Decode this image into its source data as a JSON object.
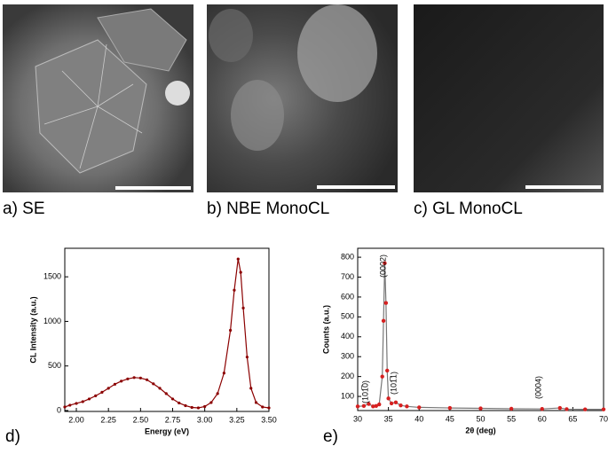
{
  "panels": [
    "a) SE",
    "b) NBE MonoCL",
    "c) GL MonoCL",
    "d)",
    "e)"
  ],
  "chart_data": [
    {
      "type": "line",
      "xlabel": "Energy  (eV)",
      "ylabel": "CL Intensity (a.u.)",
      "x": [
        1.91,
        1.95,
        2.0,
        2.05,
        2.1,
        2.15,
        2.2,
        2.25,
        2.3,
        2.35,
        2.4,
        2.45,
        2.5,
        2.55,
        2.6,
        2.65,
        2.7,
        2.75,
        2.8,
        2.85,
        2.9,
        2.95,
        3.0,
        3.05,
        3.1,
        3.15,
        3.2,
        3.23,
        3.26,
        3.28,
        3.3,
        3.33,
        3.36,
        3.4,
        3.45,
        3.5
      ],
      "series": [
        {
          "color": "#8b0000",
          "values": [
            40,
            60,
            80,
            100,
            130,
            165,
            205,
            250,
            295,
            330,
            355,
            370,
            365,
            345,
            300,
            250,
            190,
            130,
            85,
            55,
            35,
            30,
            45,
            90,
            190,
            420,
            900,
            1350,
            1700,
            1550,
            1150,
            600,
            250,
            90,
            40,
            30
          ]
        }
      ],
      "xlim": [
        1.91,
        3.5
      ],
      "ylim": [
        -10,
        1820
      ],
      "xticks": [
        {
          "value": 2,
          "label": "2.00"
        },
        {
          "value": 2.25,
          "label": "2.25"
        },
        {
          "value": 2.5,
          "label": "2.50"
        },
        {
          "value": 2.75,
          "label": "2.75"
        },
        {
          "value": 3,
          "label": "3.00"
        },
        {
          "value": 3.25,
          "label": "3.25"
        },
        {
          "value": 3.5,
          "label": "3.50"
        }
      ],
      "yticks": [
        0,
        500,
        1000,
        1500
      ]
    },
    {
      "type": "scatter",
      "xlabel": "2θ (deg)",
      "ylabel": "Counts (a.u.)",
      "x": [
        30,
        31,
        31.8,
        32.5,
        33,
        33.5,
        34,
        34.2,
        34.4,
        34.6,
        34.8,
        35,
        35.5,
        36.2,
        37,
        38,
        40,
        45,
        50,
        55,
        60,
        62.9,
        64,
        67,
        70
      ],
      "series": [
        {
          "color": "#d62020",
          "line_color": "#777777",
          "values": [
            50,
            52,
            62,
            50,
            52,
            60,
            200,
            480,
            770,
            570,
            230,
            90,
            65,
            70,
            55,
            50,
            45,
            42,
            40,
            38,
            37,
            42,
            36,
            35,
            35
          ]
        }
      ],
      "annotations": [
        "(101̅0)",
        "(0002)",
        "(101̅1)",
        "(0004)"
      ],
      "xlim": [
        30,
        70
      ],
      "ylim": [
        29,
        845
      ],
      "xticks": [
        30,
        35,
        40,
        45,
        50,
        55,
        60,
        65,
        70
      ],
      "yticks": [
        100,
        200,
        300,
        400,
        500,
        600,
        700,
        800
      ]
    }
  ]
}
